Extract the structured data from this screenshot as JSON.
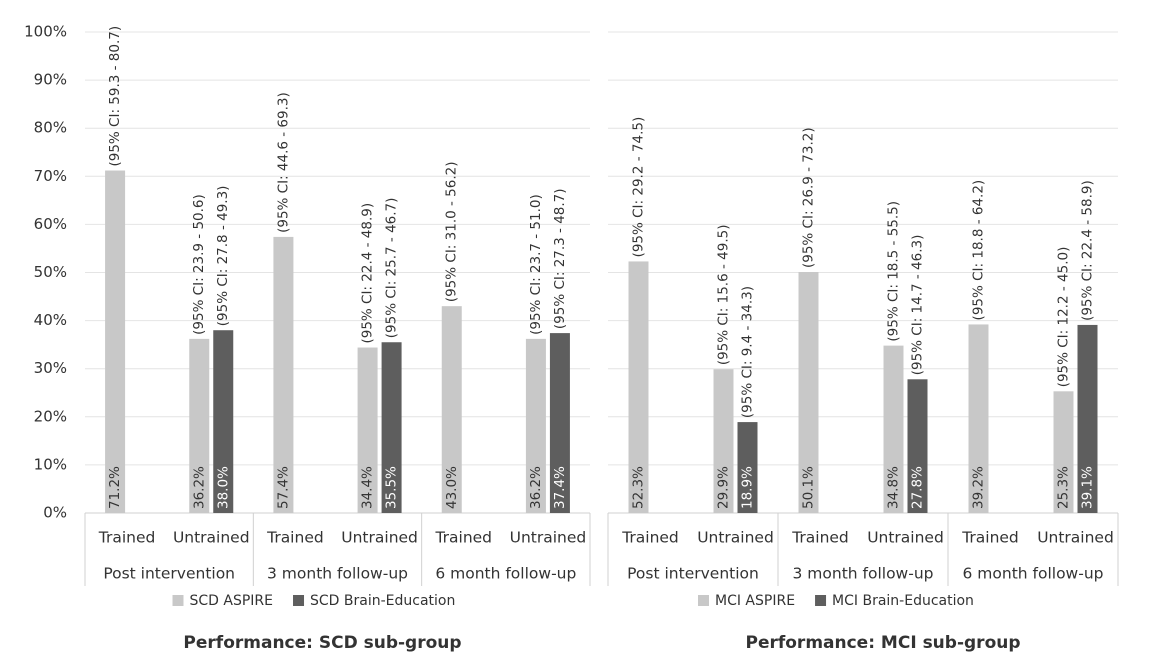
{
  "chart_data": [
    {
      "type": "bar",
      "title": "Performance: SCD sub-group",
      "categories": [
        "Trained",
        "Untrained",
        "Trained",
        "Untrained",
        "Trained",
        "Untrained"
      ],
      "groups": [
        "Post intervention",
        "3 month follow-up",
        "6 month follow-up"
      ],
      "series": [
        {
          "name": "SCD ASPIRE",
          "color": "#c8c8c8",
          "values": [
            71.2,
            36.2,
            57.4,
            34.4,
            43.0,
            36.2
          ],
          "value_labels": [
            "71.2%",
            "36.2%",
            "57.4%",
            "34.4%",
            "43.0%",
            "36.2%"
          ],
          "ci_labels": [
            "(95% CI: 59.3 - 80.7)",
            "(95% CI: 23.9 - 50.6)",
            "(95% CI: 44.6 - 69.3)",
            "(95% CI: 22.4 - 48.9)",
            "(95% CI: 31.0 - 56.2)",
            "(95% CI: 23.7 - 51.0)"
          ]
        },
        {
          "name": "SCD Brain-Education",
          "color": "#5e5e5e",
          "values": [
            null,
            38.0,
            null,
            35.5,
            null,
            37.4
          ],
          "value_labels": [
            null,
            "38.0%",
            null,
            "35.5%",
            null,
            "37.4%"
          ],
          "ci_labels": [
            null,
            "(95% CI: 27.8 - 49.3)",
            null,
            "(95% CI: 25.7 - 46.7)",
            null,
            "(95% CI: 27.3 - 48.7)"
          ]
        }
      ],
      "ylim": [
        0,
        100
      ],
      "yticks": [
        {
          "value": 0,
          "label": "0%"
        },
        {
          "value": 10,
          "label": "10%"
        },
        {
          "value": 20,
          "label": "20%"
        },
        {
          "value": 30,
          "label": "30%"
        },
        {
          "value": 40,
          "label": "40%"
        },
        {
          "value": 50,
          "label": "50%"
        },
        {
          "value": 60,
          "label": "60%"
        },
        {
          "value": 70,
          "label": "70%"
        },
        {
          "value": 80,
          "label": "80%"
        },
        {
          "value": 90,
          "label": "90%"
        },
        {
          "value": 100,
          "label": "100%"
        }
      ],
      "grid": true,
      "legend": "bottom"
    },
    {
      "type": "bar",
      "title": "Performance: MCI sub-group",
      "categories": [
        "Trained",
        "Untrained",
        "Trained",
        "Untrained",
        "Trained",
        "Untrained"
      ],
      "groups": [
        "Post intervention",
        "3 month follow-up",
        "6 month follow-up"
      ],
      "series": [
        {
          "name": "MCI ASPIRE",
          "color": "#c8c8c8",
          "values": [
            52.3,
            29.9,
            50.1,
            34.8,
            39.2,
            25.3
          ],
          "value_labels": [
            "52.3%",
            "29.9%",
            "50.1%",
            "34.8%",
            "39.2%",
            "25.3%"
          ],
          "ci_labels": [
            "(95% CI: 29.2 - 74.5)",
            "(95% CI: 15.6 - 49.5)",
            "(95% CI: 26.9 - 73.2)",
            "(95% CI: 18.5 - 55.5)",
            "(95% CI: 18.8 - 64.2)",
            "(95% CI: 12.2 - 45.0)"
          ]
        },
        {
          "name": "MCI Brain-Education",
          "color": "#5e5e5e",
          "values": [
            null,
            18.9,
            null,
            27.8,
            null,
            39.1
          ],
          "value_labels": [
            null,
            "18.9%",
            null,
            "27.8%",
            null,
            "39.1%"
          ],
          "ci_labels": [
            null,
            "(95% CI: 9.4 - 34.3)",
            null,
            "(95% CI: 14.7 - 46.3)",
            null,
            "(95% CI: 22.4 - 58.9)"
          ]
        }
      ],
      "ylim": [
        0,
        100
      ],
      "yticks": [
        0,
        10,
        20,
        30,
        40,
        50,
        60,
        70,
        80,
        90,
        100
      ],
      "tick_labels": false,
      "grid": true,
      "legend": "bottom"
    }
  ]
}
